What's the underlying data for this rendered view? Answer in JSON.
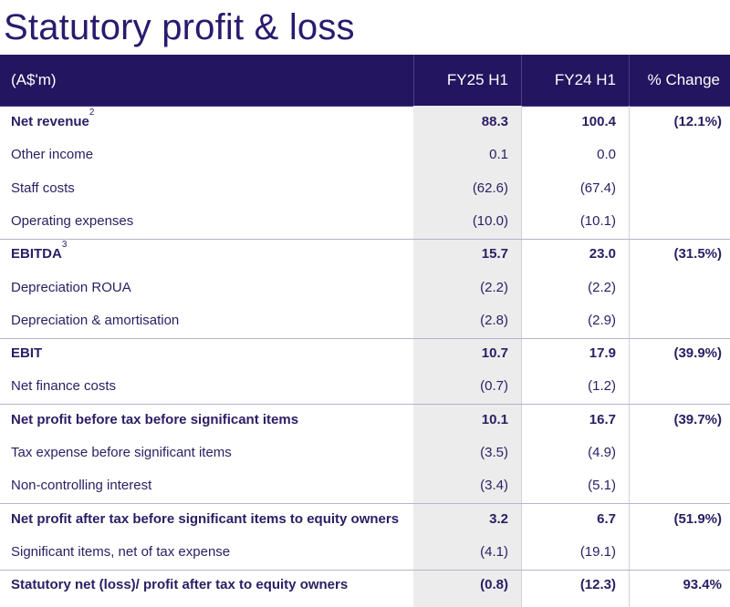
{
  "title": "Statutory profit & loss",
  "header": {
    "unit": "(A$'m)",
    "col1": "FY25 H1",
    "col2": "FY24 H1",
    "col3": "% Change"
  },
  "rows": [
    {
      "label": "Net revenue",
      "sup": "2",
      "fy25": "88.3",
      "fy24": "100.4",
      "chg": "(12.1%)",
      "bold": true
    },
    {
      "label": "Other income",
      "sup": "",
      "fy25": "0.1",
      "fy24": "0.0",
      "chg": "",
      "bold": false
    },
    {
      "label": "Staff costs",
      "sup": "",
      "fy25": "(62.6)",
      "fy24": "(67.4)",
      "chg": "",
      "bold": false
    },
    {
      "label": "Operating expenses",
      "sup": "",
      "fy25": "(10.0)",
      "fy24": "(10.1)",
      "chg": "",
      "bold": false
    },
    {
      "label": "EBITDA",
      "sup": "3",
      "fy25": "15.7",
      "fy24": "23.0",
      "chg": "(31.5%)",
      "bold": true
    },
    {
      "label": "Depreciation ROUA",
      "sup": "",
      "fy25": "(2.2)",
      "fy24": "(2.2)",
      "chg": "",
      "bold": false
    },
    {
      "label": "Depreciation & amortisation",
      "sup": "",
      "fy25": "(2.8)",
      "fy24": "(2.9)",
      "chg": "",
      "bold": false
    },
    {
      "label": "EBIT",
      "sup": "",
      "fy25": "10.7",
      "fy24": "17.9",
      "chg": "(39.9%)",
      "bold": true
    },
    {
      "label": "Net finance costs",
      "sup": "",
      "fy25": "(0.7)",
      "fy24": "(1.2)",
      "chg": "",
      "bold": false
    },
    {
      "label": "Net profit before tax before significant items",
      "sup": "",
      "fy25": "10.1",
      "fy24": "16.7",
      "chg": "(39.7%)",
      "bold": true
    },
    {
      "label": "Tax expense before significant items",
      "sup": "",
      "fy25": "(3.5)",
      "fy24": "(4.9)",
      "chg": "",
      "bold": false
    },
    {
      "label": "Non-controlling interest",
      "sup": "",
      "fy25": "(3.4)",
      "fy24": "(5.1)",
      "chg": "",
      "bold": false
    },
    {
      "label": "Net profit after tax before significant items to equity owners",
      "sup": "",
      "fy25": "3.2",
      "fy24": "6.7",
      "chg": "(51.9%)",
      "bold": true
    },
    {
      "label": "Significant items, net of tax expense",
      "sup": "",
      "fy25": "(4.1)",
      "fy24": "(19.1)",
      "chg": "",
      "bold": false
    },
    {
      "label": "Statutory net (loss)/ profit after tax to equity owners",
      "sup": "",
      "fy25": "(0.8)",
      "fy24": "(12.3)",
      "chg": "93.4%",
      "bold": true
    }
  ],
  "colors": {
    "header_bg": "#23155f",
    "text": "#2b1d63",
    "highlight_col": "#ececec"
  }
}
